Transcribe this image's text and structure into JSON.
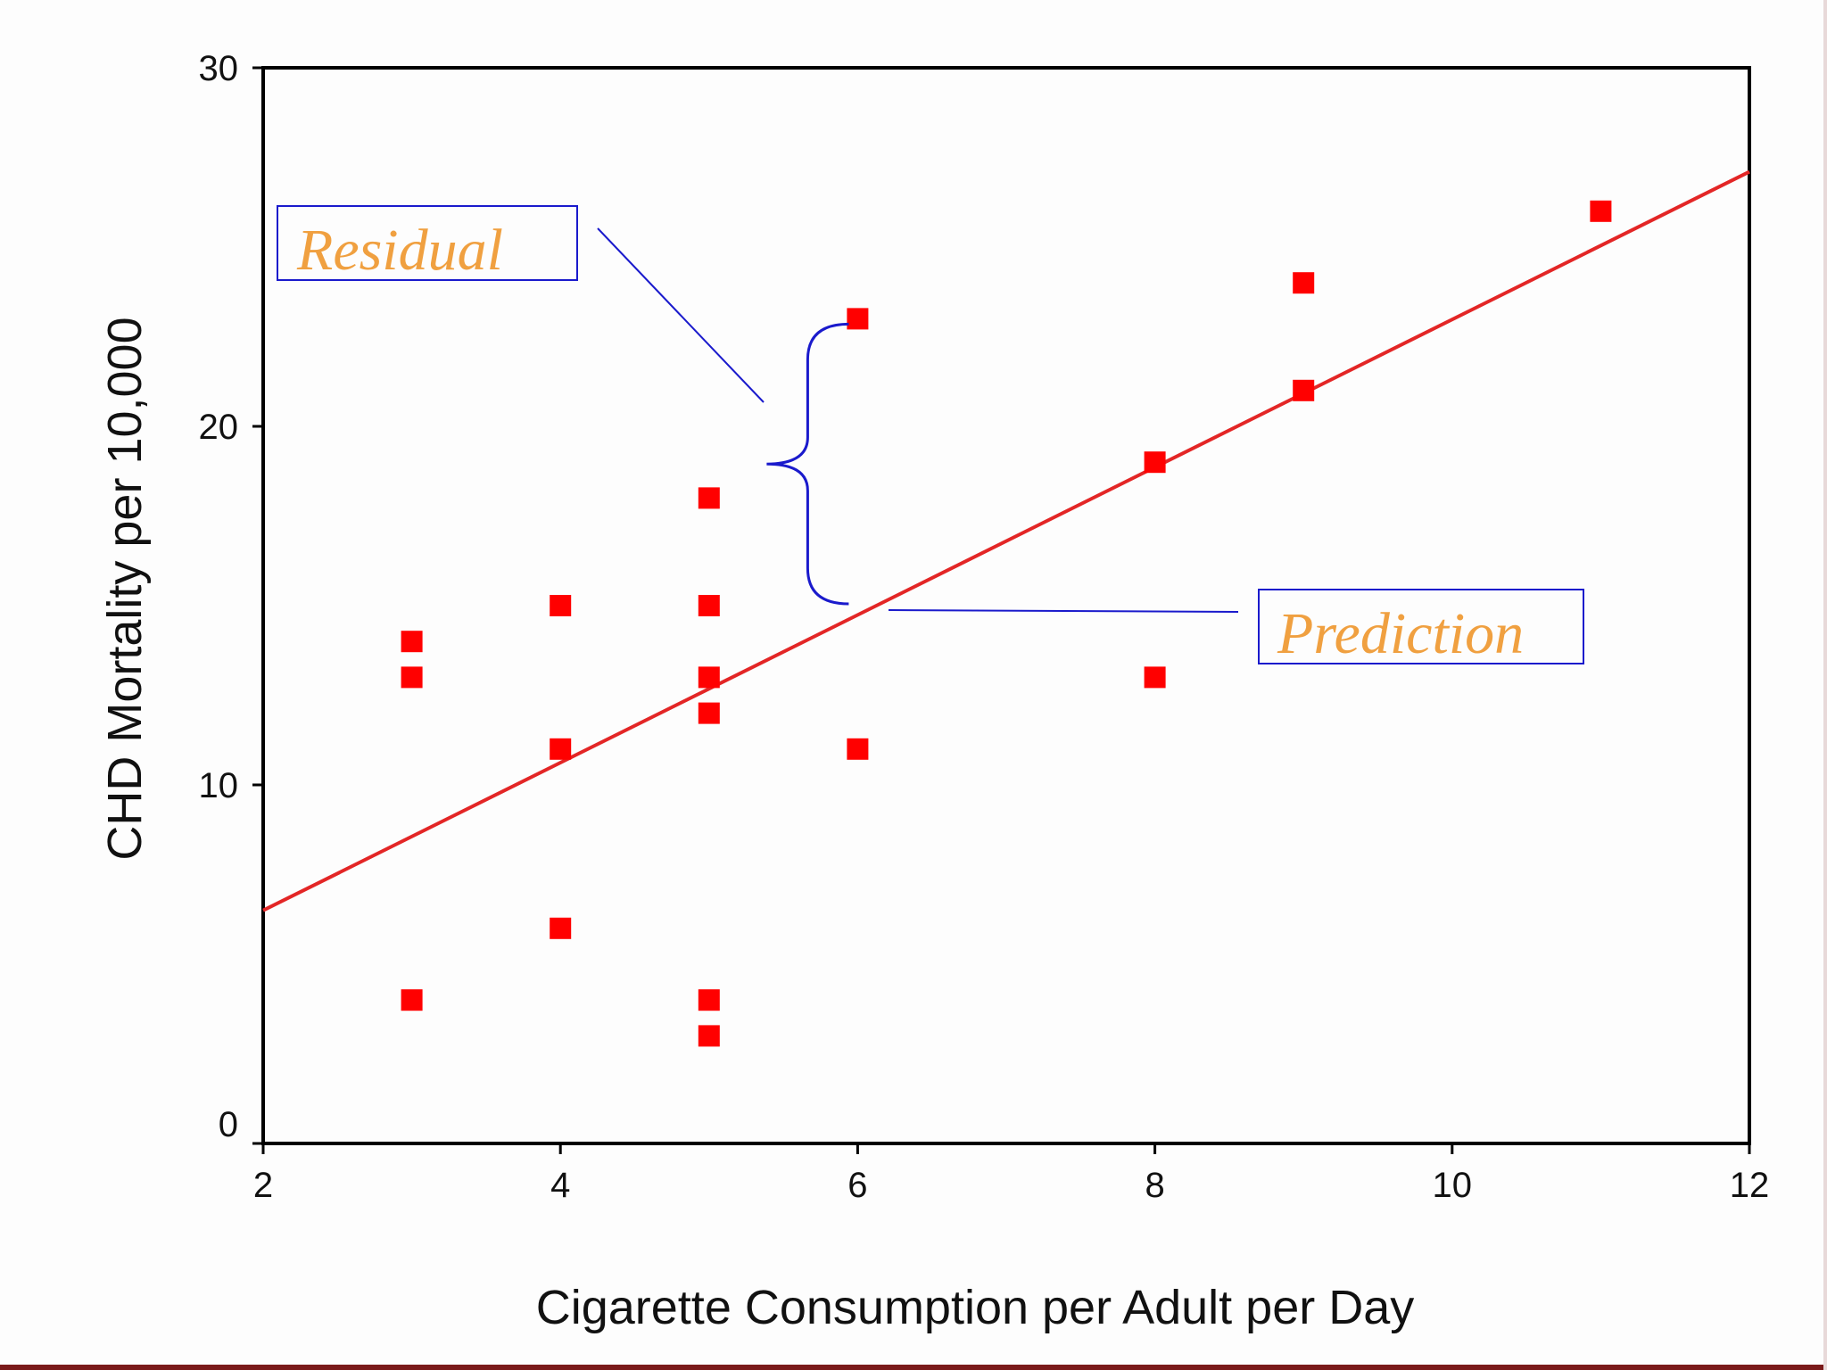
{
  "chart_data": {
    "type": "scatter",
    "xlabel": "Cigarette Consumption per Adult per Day",
    "ylabel": "CHD Mortality per 10,000",
    "xlim": [
      2,
      12
    ],
    "ylim": [
      0,
      30
    ],
    "x_ticks": [
      "2",
      "4",
      "6",
      "8",
      "10",
      "12"
    ],
    "y_ticks": [
      "0",
      "10",
      "20",
      "30"
    ],
    "grid": false,
    "marker_color": "#ff0000",
    "line_color": "#e32626",
    "points": [
      {
        "x": 3,
        "y": 14
      },
      {
        "x": 3,
        "y": 13
      },
      {
        "x": 3,
        "y": 4
      },
      {
        "x": 4,
        "y": 15
      },
      {
        "x": 4,
        "y": 11
      },
      {
        "x": 4,
        "y": 6
      },
      {
        "x": 5,
        "y": 18
      },
      {
        "x": 5,
        "y": 15
      },
      {
        "x": 5,
        "y": 13
      },
      {
        "x": 5,
        "y": 12
      },
      {
        "x": 5,
        "y": 4
      },
      {
        "x": 5,
        "y": 3
      },
      {
        "x": 6,
        "y": 23
      },
      {
        "x": 6,
        "y": 11
      },
      {
        "x": 8,
        "y": 19
      },
      {
        "x": 8,
        "y": 13
      },
      {
        "x": 9,
        "y": 24
      },
      {
        "x": 9,
        "y": 21
      },
      {
        "x": 11,
        "y": 26
      }
    ],
    "regression_line": {
      "x": [
        2,
        12
      ],
      "y": [
        6.5,
        27.1
      ]
    },
    "annotations": [
      {
        "text": "Residual",
        "color": "#f0a040",
        "border_color": "#1a1acc"
      },
      {
        "text": "Prediction",
        "color": "#f0a040",
        "border_color": "#1a1acc"
      }
    ],
    "residual_point": {
      "x": 6,
      "y": 23
    },
    "predicted_point": {
      "x": 6,
      "y": 14.9
    }
  }
}
